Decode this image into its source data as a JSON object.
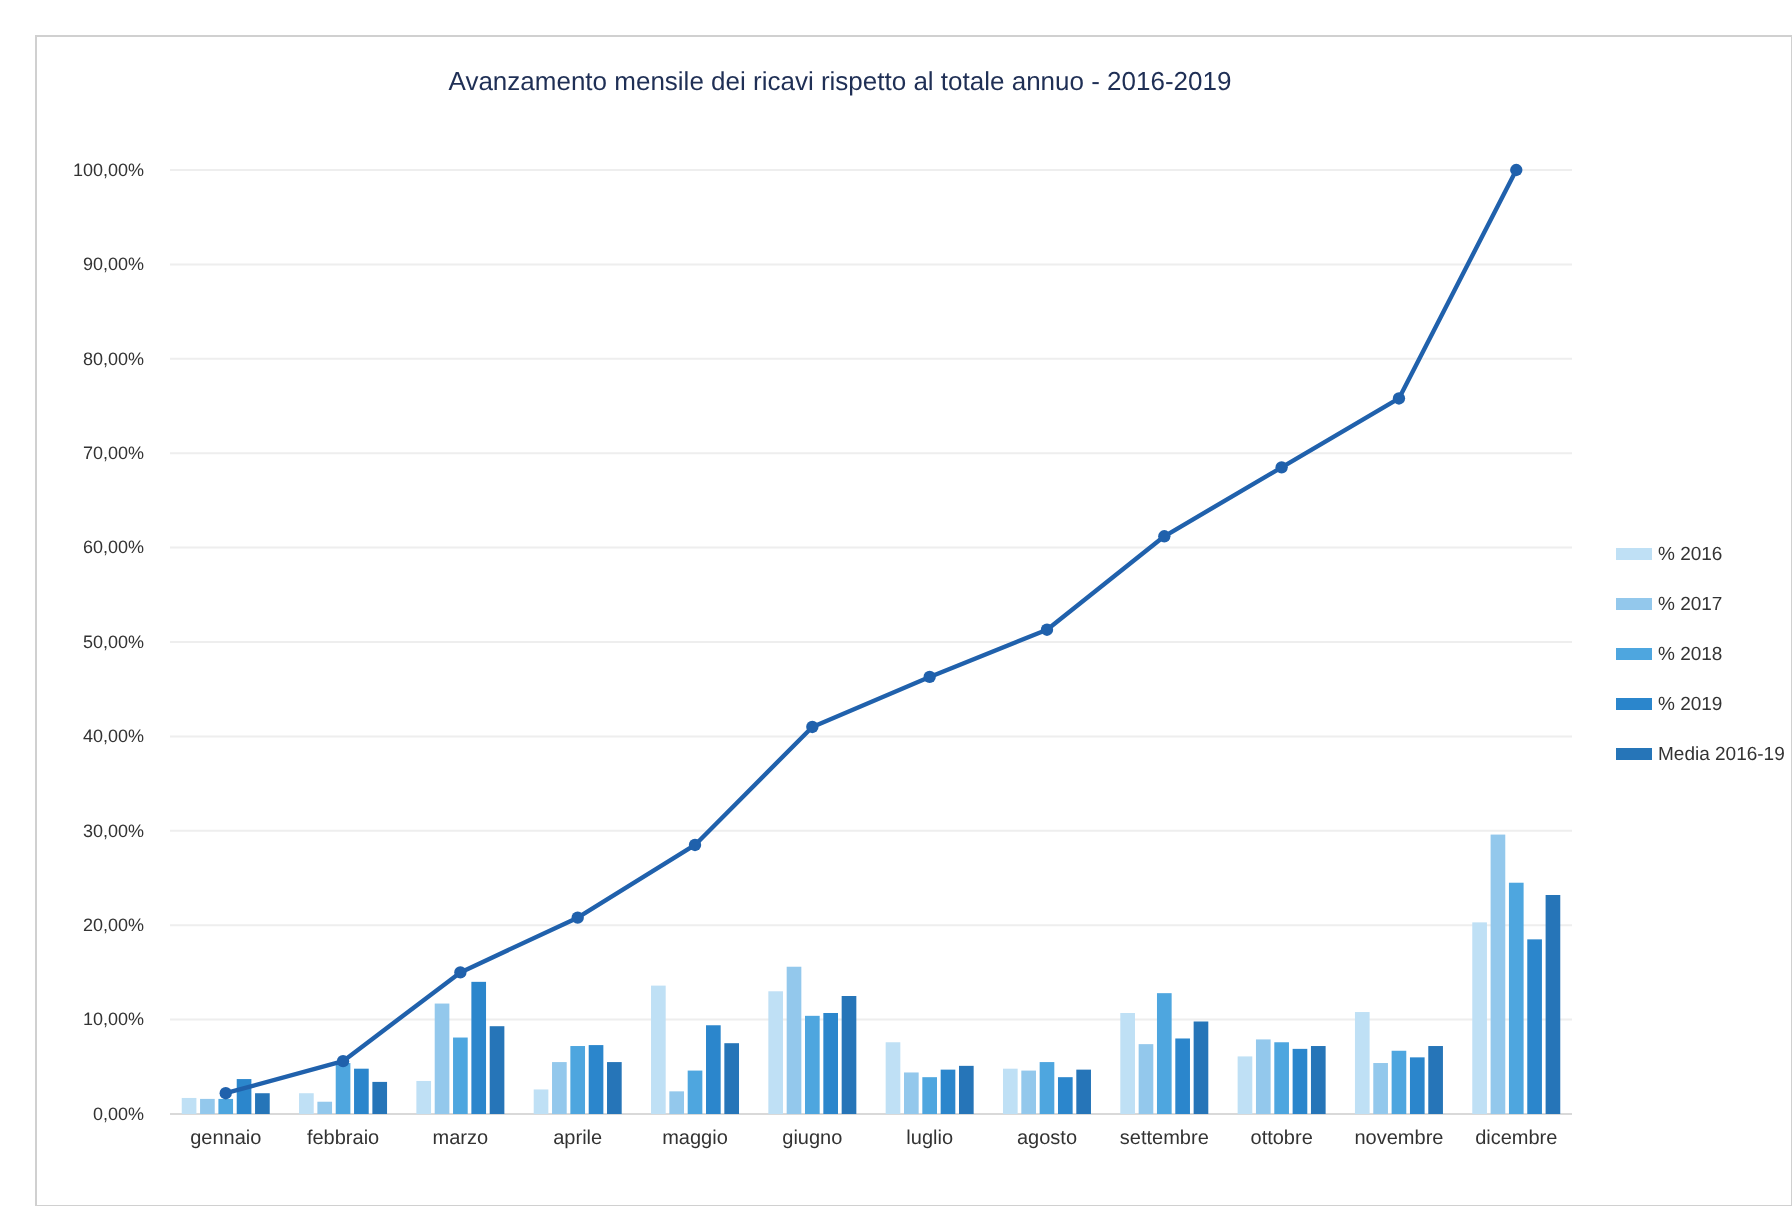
{
  "chart_data": {
    "type": "bar",
    "title": "Avanzamento mensile dei ricavi rispetto al totale annuo - 2016-2019",
    "categories": [
      "gennaio",
      "febbraio",
      "marzo",
      "aprile",
      "maggio",
      "giugno",
      "luglio",
      "agosto",
      "settembre",
      "ottobre",
      "novembre",
      "dicembre"
    ],
    "series": [
      {
        "name": "% 2016",
        "color": "#bfe0f5",
        "values": [
          1.7,
          2.2,
          3.5,
          2.6,
          13.6,
          13.0,
          7.6,
          4.8,
          10.7,
          6.1,
          10.8,
          20.3
        ]
      },
      {
        "name": "% 2017",
        "color": "#93c8ec",
        "values": [
          1.6,
          1.3,
          11.7,
          5.5,
          2.4,
          15.6,
          4.4,
          4.6,
          7.4,
          7.9,
          5.4,
          29.6
        ]
      },
      {
        "name": "% 2018",
        "color": "#4ea6df",
        "values": [
          1.6,
          5.4,
          8.1,
          7.2,
          4.6,
          10.4,
          3.9,
          5.5,
          12.8,
          7.6,
          6.7,
          24.5
        ]
      },
      {
        "name": "% 2019",
        "color": "#2b86cc",
        "values": [
          3.7,
          4.8,
          14.0,
          7.3,
          9.4,
          10.7,
          4.7,
          3.9,
          8.0,
          6.9,
          6.0,
          18.5
        ]
      },
      {
        "name": "Media 2016-19",
        "color": "#2675b8",
        "values": [
          2.2,
          3.4,
          9.3,
          5.5,
          7.5,
          12.5,
          5.1,
          4.7,
          9.8,
          7.2,
          7.2,
          23.2
        ]
      },
      {
        "type": "line",
        "color": "#2061ac",
        "marker": "circle",
        "values": [
          2.2,
          5.6,
          15.0,
          20.8,
          28.5,
          41.0,
          46.3,
          51.3,
          61.2,
          68.5,
          75.8,
          100
        ]
      }
    ],
    "ylim": [
      0,
      100
    ],
    "yticks": [
      {
        "value": 0,
        "label": "0,00%"
      },
      {
        "value": 10,
        "label": "10,00%"
      },
      {
        "value": 20,
        "label": "20,00%"
      },
      {
        "value": 30,
        "label": "30,00%"
      },
      {
        "value": 40,
        "label": "40,00%"
      },
      {
        "value": 50,
        "label": "50,00%"
      },
      {
        "value": 60,
        "label": "60,00%"
      },
      {
        "value": 70,
        "label": "70,00%"
      },
      {
        "value": 80,
        "label": "80,00%"
      },
      {
        "value": 90,
        "label": "90,00%"
      },
      {
        "value": 100,
        "label": "100,00%"
      }
    ],
    "grid": "y",
    "legend": "right"
  }
}
